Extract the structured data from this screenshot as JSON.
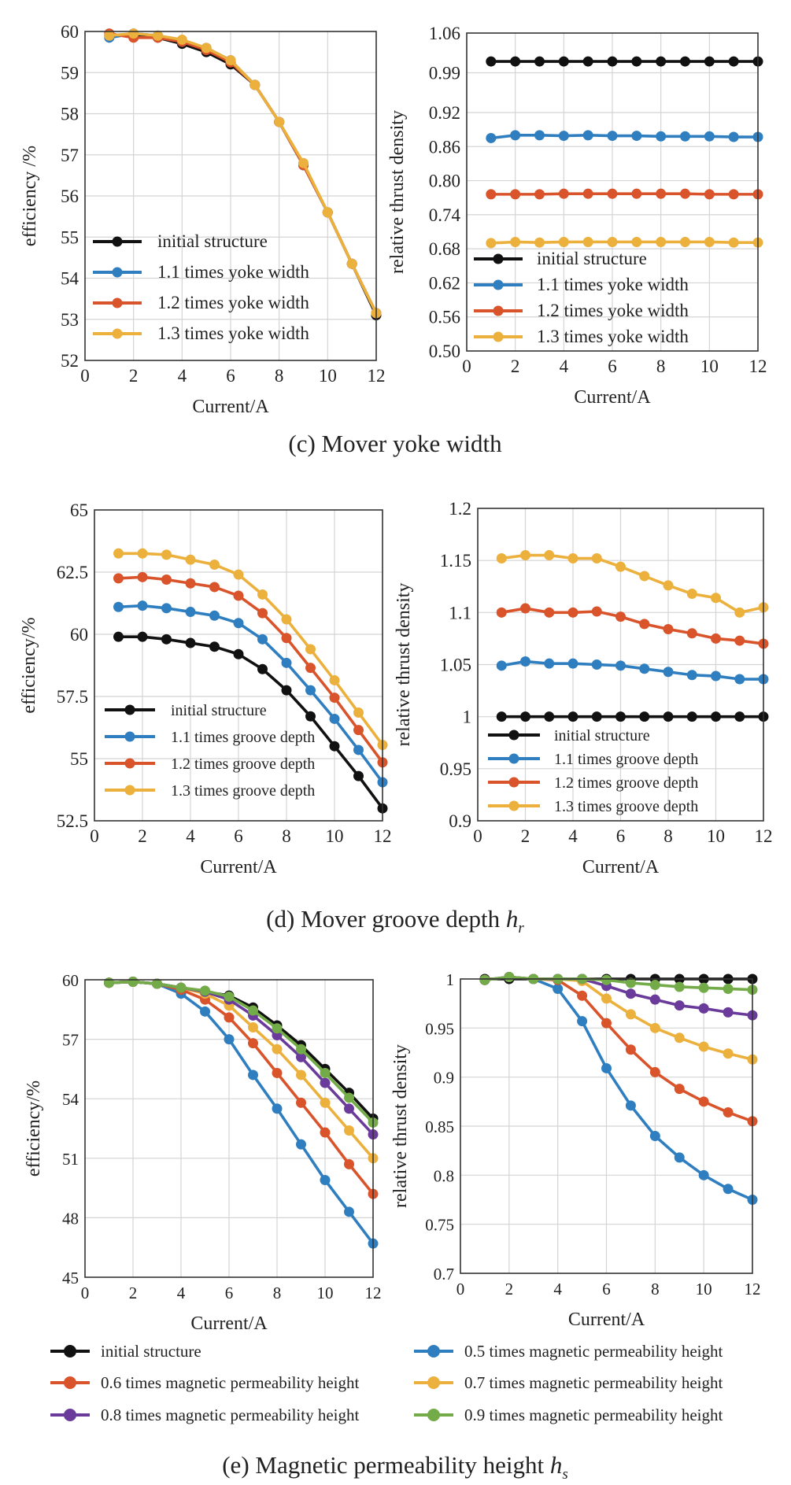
{
  "colors": {
    "black": "#111111",
    "blue": "#2f7fc0",
    "orange": "#d9532b",
    "yellow": "#ecb03c",
    "purple": "#6a3b9a",
    "green": "#73ab48",
    "grid": "#d4d4d4"
  },
  "captions": {
    "c": "(c) Mover yoke width",
    "d_prefix": "(d) Mover groove depth ",
    "d_sym": "h",
    "d_sub": "r",
    "e_prefix": "(e) Magnetic permeability height ",
    "e_sym": "h",
    "e_sub": "s"
  },
  "chart_data": [
    {
      "id": "c-left",
      "type": "line",
      "xlabel": "Current/A",
      "ylabel": "efficiency /%",
      "xlim": [
        0,
        12
      ],
      "ylim": [
        52,
        60
      ],
      "xticks": [
        0,
        2,
        4,
        6,
        8,
        10,
        12
      ],
      "yticks": [
        52,
        53,
        54,
        55,
        56,
        57,
        58,
        59,
        60
      ],
      "x": [
        1,
        2,
        3,
        4,
        5,
        6,
        7,
        8,
        9,
        10,
        11,
        12
      ],
      "legend_position": "lower-left",
      "series": [
        {
          "name": "initial structure",
          "color": "black",
          "values": [
            59.9,
            59.9,
            59.85,
            59.7,
            59.5,
            59.2,
            58.7,
            57.8,
            56.75,
            55.6,
            54.35,
            53.1
          ]
        },
        {
          "name": "1.1 times yoke width",
          "color": "blue",
          "values": [
            59.85,
            59.95,
            59.9,
            59.75,
            59.6,
            59.3,
            58.7,
            57.8,
            56.75,
            55.6,
            54.35,
            53.15
          ]
        },
        {
          "name": "1.2 times yoke width",
          "color": "orange",
          "values": [
            59.95,
            59.85,
            59.85,
            59.75,
            59.55,
            59.25,
            58.7,
            57.8,
            56.75,
            55.6,
            54.35,
            53.15
          ]
        },
        {
          "name": "1.3 times yoke width",
          "color": "yellow",
          "values": [
            59.9,
            59.95,
            59.9,
            59.8,
            59.6,
            59.3,
            58.7,
            57.8,
            56.8,
            55.6,
            54.35,
            53.15
          ]
        }
      ]
    },
    {
      "id": "c-right",
      "type": "line",
      "xlabel": "Current/A",
      "ylabel": "relative thrust density",
      "xlim": [
        0,
        12
      ],
      "ylim": [
        0.5,
        1.06
      ],
      "xticks": [
        0,
        2,
        4,
        6,
        8,
        10,
        12
      ],
      "yticks": [
        0.5,
        0.56,
        0.62,
        0.68,
        0.74,
        0.8,
        0.86,
        0.92,
        0.99,
        1.06
      ],
      "ytick_labels": [
        "0.50",
        "0.56",
        "0.62",
        "0.68",
        "0.74",
        "0.80",
        "0.86",
        "0.92",
        "0.99",
        "1.06"
      ],
      "x": [
        1,
        2,
        3,
        4,
        5,
        6,
        7,
        8,
        9,
        10,
        11,
        12
      ],
      "legend_position": "lower-left",
      "series": [
        {
          "name": "initial structure",
          "color": "black",
          "values": [
            1.01,
            1.01,
            1.01,
            1.01,
            1.01,
            1.01,
            1.01,
            1.01,
            1.01,
            1.01,
            1.01,
            1.01
          ]
        },
        {
          "name": "1.1 times yoke width",
          "color": "blue",
          "values": [
            0.875,
            0.88,
            0.88,
            0.879,
            0.88,
            0.879,
            0.879,
            0.878,
            0.878,
            0.878,
            0.877,
            0.877
          ]
        },
        {
          "name": "1.2 times yoke width",
          "color": "orange",
          "values": [
            0.776,
            0.776,
            0.776,
            0.777,
            0.777,
            0.777,
            0.777,
            0.777,
            0.777,
            0.776,
            0.776,
            0.776
          ]
        },
        {
          "name": "1.3 times yoke width",
          "color": "yellow",
          "values": [
            0.69,
            0.692,
            0.691,
            0.692,
            0.692,
            0.692,
            0.692,
            0.692,
            0.692,
            0.692,
            0.691,
            0.691
          ]
        }
      ]
    },
    {
      "id": "d-left",
      "type": "line",
      "xlabel": "Current/A",
      "ylabel": "efficiency/%",
      "xlim": [
        0,
        12
      ],
      "ylim": [
        52.5,
        65
      ],
      "xticks": [
        0,
        2,
        4,
        6,
        8,
        10,
        12
      ],
      "yticks": [
        52.5,
        55,
        57.5,
        60,
        62.5,
        65
      ],
      "x": [
        1,
        2,
        3,
        4,
        5,
        6,
        7,
        8,
        9,
        10,
        11,
        12
      ],
      "legend_position": "lower-left",
      "series": [
        {
          "name": "initial structure",
          "color": "black",
          "values": [
            59.9,
            59.9,
            59.8,
            59.65,
            59.5,
            59.2,
            58.6,
            57.75,
            56.7,
            55.5,
            54.3,
            53.0
          ]
        },
        {
          "name": "1.1 times groove depth",
          "color": "blue",
          "values": [
            61.1,
            61.15,
            61.05,
            60.9,
            60.75,
            60.45,
            59.8,
            58.85,
            57.75,
            56.6,
            55.35,
            54.05
          ]
        },
        {
          "name": "1.2 times groove depth",
          "color": "orange",
          "values": [
            62.25,
            62.3,
            62.2,
            62.05,
            61.9,
            61.55,
            60.85,
            59.85,
            58.65,
            57.45,
            56.15,
            54.85
          ]
        },
        {
          "name": "1.3 times groove depth",
          "color": "yellow",
          "values": [
            63.25,
            63.25,
            63.2,
            63.0,
            62.8,
            62.4,
            61.6,
            60.6,
            59.4,
            58.15,
            56.85,
            55.55
          ]
        }
      ]
    },
    {
      "id": "d-right",
      "type": "line",
      "xlabel": "Current/A",
      "ylabel": "relative thrust density",
      "xlim": [
        0,
        12
      ],
      "ylim": [
        0.9,
        1.2
      ],
      "xticks": [
        0,
        2,
        4,
        6,
        8,
        10,
        12
      ],
      "yticks": [
        0.9,
        0.95,
        1.0,
        1.05,
        1.1,
        1.15,
        1.2
      ],
      "ytick_labels": [
        "0.9",
        "0.95",
        "1",
        "1.05",
        "1.1",
        "1.15",
        "1.2"
      ],
      "x": [
        1,
        2,
        3,
        4,
        5,
        6,
        7,
        8,
        9,
        10,
        11,
        12
      ],
      "legend_position": "lower-left",
      "series": [
        {
          "name": "initial structure",
          "color": "black",
          "values": [
            1.0,
            1.0,
            1.0,
            1.0,
            1.0,
            1.0,
            1.0,
            1.0,
            1.0,
            1.0,
            1.0,
            1.0
          ]
        },
        {
          "name": "1.1 times groove depth",
          "color": "blue",
          "values": [
            1.049,
            1.053,
            1.051,
            1.051,
            1.05,
            1.049,
            1.046,
            1.043,
            1.04,
            1.039,
            1.036,
            1.036
          ]
        },
        {
          "name": "1.2 times groove depth",
          "color": "orange",
          "values": [
            1.1,
            1.104,
            1.1,
            1.1,
            1.101,
            1.096,
            1.089,
            1.084,
            1.08,
            1.075,
            1.073,
            1.07
          ]
        },
        {
          "name": "1.3 times groove depth",
          "color": "yellow",
          "values": [
            1.152,
            1.155,
            1.155,
            1.152,
            1.152,
            1.144,
            1.135,
            1.126,
            1.118,
            1.114,
            1.1,
            1.105
          ]
        }
      ]
    },
    {
      "id": "e-left",
      "type": "line",
      "xlabel": "Current/A",
      "ylabel": "efficiency/%",
      "xlim": [
        0,
        12
      ],
      "ylim": [
        45,
        60
      ],
      "xticks": [
        0,
        2,
        4,
        6,
        8,
        10,
        12
      ],
      "yticks": [
        45,
        48,
        51,
        54,
        57,
        60
      ],
      "x": [
        1,
        2,
        3,
        4,
        5,
        6,
        7,
        8,
        9,
        10,
        11,
        12
      ],
      "legend_position": "below",
      "series": [
        {
          "name": "initial structure",
          "color": "black",
          "values": [
            59.85,
            59.9,
            59.8,
            59.6,
            59.4,
            59.2,
            58.6,
            57.7,
            56.7,
            55.5,
            54.3,
            53.0
          ]
        },
        {
          "name": "0.5 times magnetic permeability height",
          "color": "blue",
          "values": [
            59.85,
            59.9,
            59.8,
            59.3,
            58.4,
            57.0,
            55.2,
            53.5,
            51.7,
            49.9,
            48.3,
            46.7
          ]
        },
        {
          "name": "0.6 times magnetic permeability height",
          "color": "orange",
          "values": [
            59.85,
            59.9,
            59.8,
            59.5,
            59.0,
            58.1,
            56.8,
            55.3,
            53.8,
            52.3,
            50.7,
            49.2
          ]
        },
        {
          "name": "0.7 times magnetic permeability height",
          "color": "yellow",
          "values": [
            59.85,
            59.9,
            59.8,
            59.6,
            59.3,
            58.7,
            57.6,
            56.5,
            55.2,
            53.8,
            52.4,
            51.0
          ]
        },
        {
          "name": "0.8 times magnetic permeability height",
          "color": "purple",
          "values": [
            59.85,
            59.9,
            59.8,
            59.6,
            59.4,
            59.0,
            58.2,
            57.2,
            56.1,
            54.8,
            53.5,
            52.2
          ]
        },
        {
          "name": "0.9 times magnetic permeability height",
          "color": "green",
          "values": [
            59.85,
            59.9,
            59.8,
            59.6,
            59.45,
            59.15,
            58.45,
            57.55,
            56.5,
            55.3,
            54.05,
            52.8
          ]
        }
      ]
    },
    {
      "id": "e-right",
      "type": "line",
      "xlabel": "Current/A",
      "ylabel": "relative thrust density",
      "xlim": [
        0,
        12
      ],
      "ylim": [
        0.7,
        1.0
      ],
      "xticks": [
        0,
        2,
        4,
        6,
        8,
        10,
        12
      ],
      "yticks": [
        0.7,
        0.75,
        0.8,
        0.85,
        0.9,
        0.95,
        1.0
      ],
      "ytick_labels": [
        "0.7",
        "0.75",
        "0.8",
        "0.85",
        "0.9",
        "0.95",
        "1"
      ],
      "x": [
        1,
        2,
        3,
        4,
        5,
        6,
        7,
        8,
        9,
        10,
        11,
        12
      ],
      "legend_position": "below",
      "series": [
        {
          "name": "initial structure",
          "color": "black",
          "values": [
            1.0,
            1.0,
            1.0,
            1.0,
            1.0,
            1.0,
            1.0,
            1.0,
            1.0,
            1.0,
            1.0,
            1.0
          ]
        },
        {
          "name": "0.5 times magnetic permeability height",
          "color": "blue",
          "values": [
            0.999,
            1.002,
            1.0,
            0.99,
            0.957,
            0.909,
            0.871,
            0.84,
            0.818,
            0.8,
            0.786,
            0.775
          ]
        },
        {
          "name": "0.6 times magnetic permeability height",
          "color": "orange",
          "values": [
            0.999,
            1.002,
            1.0,
            0.999,
            0.983,
            0.955,
            0.928,
            0.905,
            0.888,
            0.875,
            0.864,
            0.855
          ]
        },
        {
          "name": "0.7 times magnetic permeability height",
          "color": "yellow",
          "values": [
            0.999,
            1.002,
            1.0,
            1.0,
            0.998,
            0.98,
            0.964,
            0.95,
            0.94,
            0.931,
            0.924,
            0.918
          ]
        },
        {
          "name": "0.8 times magnetic permeability height",
          "color": "purple",
          "values": [
            0.999,
            1.002,
            1.0,
            1.0,
            1.0,
            0.993,
            0.985,
            0.979,
            0.973,
            0.97,
            0.966,
            0.963
          ]
        },
        {
          "name": "0.9 times magnetic permeability height",
          "color": "green",
          "values": [
            0.999,
            1.002,
            1.0,
            1.0,
            1.0,
            0.999,
            0.996,
            0.994,
            0.992,
            0.991,
            0.99,
            0.989
          ]
        }
      ]
    }
  ]
}
